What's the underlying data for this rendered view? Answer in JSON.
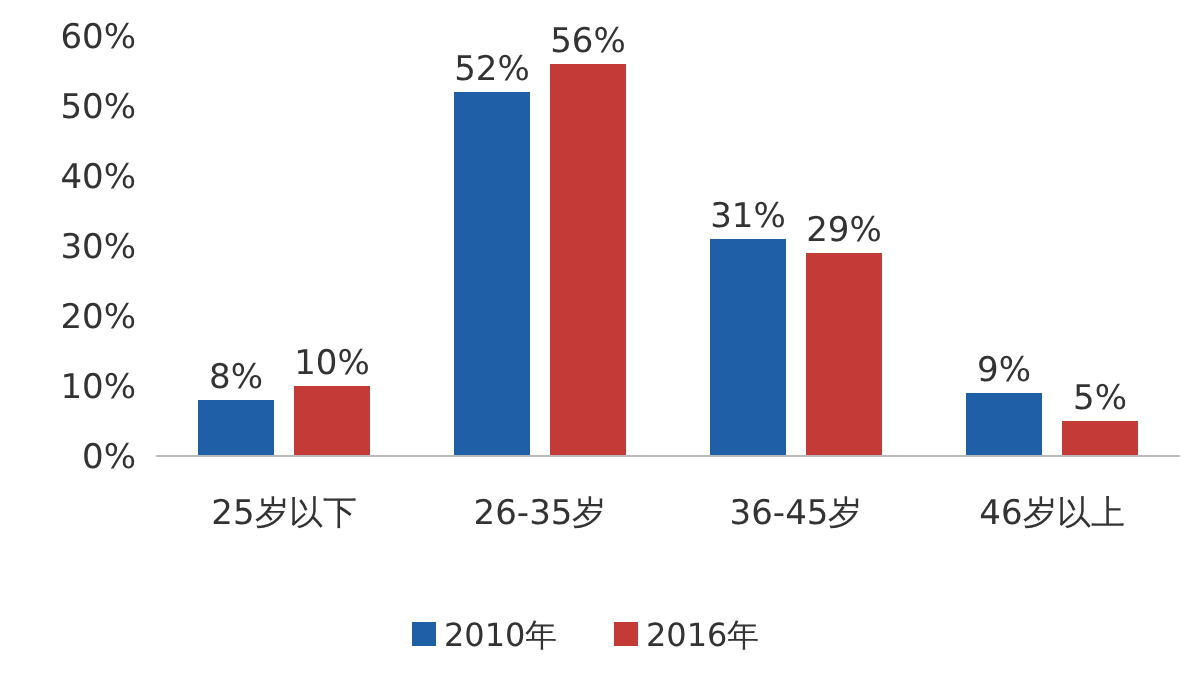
{
  "chart_data": {
    "type": "bar",
    "categories": [
      "25岁以下",
      "26-35岁",
      "36-45岁",
      "46岁以上"
    ],
    "series": [
      {
        "name": "2010年",
        "color": "#1f5fa8",
        "values": [
          8,
          52,
          31,
          9
        ],
        "value_labels": [
          "8%",
          "52%",
          "31%",
          "9%"
        ]
      },
      {
        "name": "2016年",
        "color": "#c33a36",
        "values": [
          10,
          56,
          29,
          5
        ],
        "value_labels": [
          "10%",
          "56%",
          "29%",
          "5%"
        ]
      }
    ],
    "ylim": [
      0,
      60
    ],
    "yticks": [
      {
        "value": 0,
        "label": "0%"
      },
      {
        "value": 10,
        "label": "10%"
      },
      {
        "value": 20,
        "label": "20%"
      },
      {
        "value": 30,
        "label": "30%"
      },
      {
        "value": 40,
        "label": "40%"
      },
      {
        "value": 50,
        "label": "50%"
      },
      {
        "value": 60,
        "label": "60%"
      }
    ],
    "legend": "bottom"
  }
}
